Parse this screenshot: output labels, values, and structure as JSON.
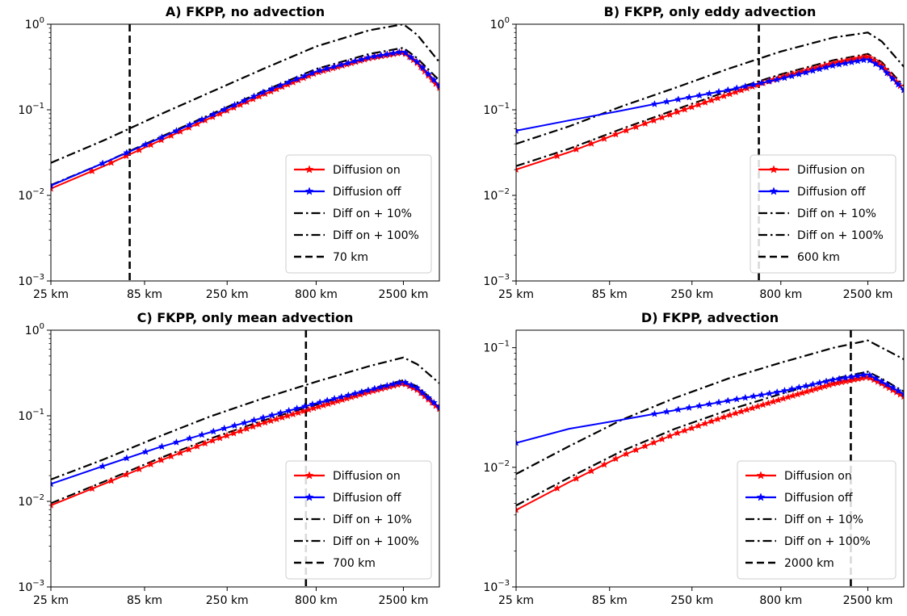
{
  "figure": {
    "x_tick_labels": [
      "25 km",
      "85 km",
      "250 km",
      "800 km",
      "2500 km"
    ],
    "series_colors": {
      "diffusion_on": "#ff0000",
      "diffusion_off": "#0000ff",
      "reference": "#000000"
    }
  },
  "chart_data": [
    {
      "type": "line",
      "title": "A) FKPP, no advection",
      "xlabel": "",
      "ylabel": "",
      "x_scale": "log",
      "y_scale": "log",
      "xlim": [
        25,
        4000
      ],
      "ylim": [
        0.001,
        1
      ],
      "y_tick_labels": [
        "10^0",
        "10^-1",
        "10^-2",
        "10^-3"
      ],
      "x": [
        25,
        50,
        100,
        200,
        400,
        800,
        1600,
        2500,
        3000,
        4000
      ],
      "series": [
        {
          "name": "Diffusion on",
          "style": "red-star",
          "values": [
            0.012,
            0.022,
            0.042,
            0.08,
            0.15,
            0.27,
            0.4,
            0.47,
            0.35,
            0.18
          ]
        },
        {
          "name": "Diffusion off",
          "style": "blue-star",
          "values": [
            0.013,
            0.024,
            0.045,
            0.085,
            0.16,
            0.28,
            0.41,
            0.48,
            0.36,
            0.19
          ]
        },
        {
          "name": "Diff on + 10%",
          "style": "dashdot",
          "values": [
            0.0132,
            0.024,
            0.046,
            0.088,
            0.165,
            0.3,
            0.45,
            0.53,
            0.4,
            0.22
          ]
        },
        {
          "name": "Diff on + 100%",
          "style": "dashdot",
          "values": [
            0.024,
            0.044,
            0.085,
            0.16,
            0.3,
            0.55,
            0.85,
            1.0,
            0.75,
            0.36
          ]
        }
      ],
      "vline": {
        "name": "70 km",
        "x": 70
      },
      "legend_loc": "lower-right"
    },
    {
      "type": "line",
      "title": "B) FKPP, only eddy advection",
      "xlabel": "",
      "ylabel": "",
      "x_scale": "log",
      "y_scale": "log",
      "xlim": [
        25,
        4000
      ],
      "ylim": [
        0.001,
        1
      ],
      "y_tick_labels": [
        "10^0",
        "10^-1",
        "10^-2",
        "10^-3"
      ],
      "x": [
        25,
        50,
        100,
        200,
        400,
        800,
        1600,
        2500,
        3000,
        4000
      ],
      "series": [
        {
          "name": "Diffusion on",
          "style": "red-star",
          "values": [
            0.02,
            0.032,
            0.055,
            0.092,
            0.15,
            0.24,
            0.35,
            0.42,
            0.33,
            0.17
          ]
        },
        {
          "name": "Diffusion off",
          "style": "blue-star",
          "values": [
            0.057,
            0.075,
            0.098,
            0.13,
            0.17,
            0.23,
            0.33,
            0.39,
            0.31,
            0.17
          ]
        },
        {
          "name": "Diff on + 10%",
          "style": "dashdot",
          "values": [
            0.022,
            0.035,
            0.06,
            0.1,
            0.165,
            0.26,
            0.38,
            0.45,
            0.36,
            0.19
          ]
        },
        {
          "name": "Diff on + 100%",
          "style": "dashdot",
          "values": [
            0.04,
            0.064,
            0.11,
            0.18,
            0.3,
            0.48,
            0.7,
            0.8,
            0.63,
            0.32
          ]
        }
      ],
      "vline": {
        "name": "600 km",
        "x": 600
      },
      "legend_loc": "lower-right"
    },
    {
      "type": "line",
      "title": "C) FKPP, only mean advection",
      "xlabel": "",
      "ylabel": "",
      "x_scale": "log",
      "y_scale": "log",
      "xlim": [
        25,
        4000
      ],
      "ylim": [
        0.001,
        1
      ],
      "y_tick_labels": [
        "10^0",
        "10^-1",
        "10^-2",
        "10^-3"
      ],
      "x": [
        25,
        50,
        100,
        200,
        400,
        800,
        1600,
        2500,
        3000,
        4000
      ],
      "series": [
        {
          "name": "Diffusion on",
          "style": "red-star",
          "values": [
            0.009,
            0.016,
            0.029,
            0.05,
            0.082,
            0.125,
            0.19,
            0.24,
            0.2,
            0.12
          ]
        },
        {
          "name": "Diffusion off",
          "style": "blue-star",
          "values": [
            0.016,
            0.026,
            0.042,
            0.064,
            0.095,
            0.14,
            0.2,
            0.25,
            0.21,
            0.125
          ]
        },
        {
          "name": "Diff on + 10%",
          "style": "dashdot",
          "values": [
            0.0095,
            0.017,
            0.031,
            0.054,
            0.088,
            0.135,
            0.205,
            0.26,
            0.22,
            0.13
          ]
        },
        {
          "name": "Diff on + 100%",
          "style": "dashdot",
          "values": [
            0.018,
            0.031,
            0.056,
            0.098,
            0.16,
            0.25,
            0.38,
            0.48,
            0.4,
            0.24
          ]
        }
      ],
      "vline": {
        "name": "700 km",
        "x": 700
      },
      "legend_loc": "lower-right"
    },
    {
      "type": "line",
      "title": "D) FKPP, advection",
      "xlabel": "",
      "ylabel": "",
      "x_scale": "log",
      "y_scale": "log",
      "xlim": [
        25,
        4000
      ],
      "ylim": [
        0.001,
        0.14
      ],
      "y_tick_labels": [
        "10^-1",
        "10^-2",
        "10^-3"
      ],
      "x": [
        25,
        50,
        100,
        200,
        400,
        800,
        1600,
        2500,
        3000,
        4000
      ],
      "series": [
        {
          "name": "Diffusion on",
          "style": "red-star",
          "values": [
            0.0044,
            0.0075,
            0.0125,
            0.019,
            0.027,
            0.037,
            0.05,
            0.057,
            0.05,
            0.039
          ]
        },
        {
          "name": "Diffusion off",
          "style": "blue-star",
          "values": [
            0.016,
            0.021,
            0.025,
            0.03,
            0.036,
            0.043,
            0.054,
            0.06,
            0.052,
            0.041
          ]
        },
        {
          "name": "Diff on + 10%",
          "style": "dashdot",
          "values": [
            0.0048,
            0.0082,
            0.0137,
            0.021,
            0.03,
            0.041,
            0.055,
            0.063,
            0.055,
            0.043
          ]
        },
        {
          "name": "Diff on + 100%",
          "style": "dashdot",
          "values": [
            0.0088,
            0.015,
            0.025,
            0.038,
            0.055,
            0.075,
            0.1,
            0.115,
            0.1,
            0.08
          ]
        }
      ],
      "vline": {
        "name": "2000 km",
        "x": 2000
      },
      "legend_loc": "lower-right"
    }
  ]
}
